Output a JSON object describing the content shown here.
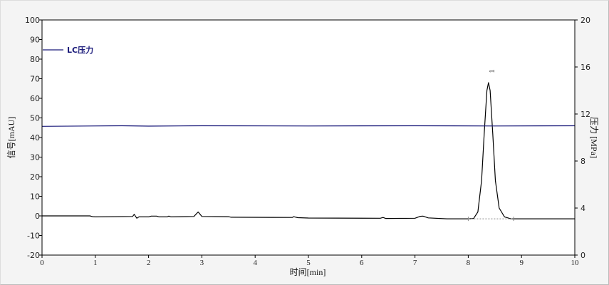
{
  "chart_data": {
    "type": "line",
    "xlabel": "时间[min]",
    "ylabel": "信号[mAU]",
    "y2label": "压力 [MPa]",
    "xlim": [
      0,
      10
    ],
    "ylim": [
      -20,
      100
    ],
    "y2lim": [
      0,
      20
    ],
    "xticks": [
      "0",
      "1",
      "2",
      "3",
      "4",
      "5",
      "6",
      "7",
      "8",
      "9",
      "10"
    ],
    "yticks": [
      "-20",
      "-10",
      "0",
      "10",
      "20",
      "30",
      "40",
      "50",
      "60",
      "70",
      "80",
      "90",
      "100"
    ],
    "y2ticks": [
      "0",
      "4",
      "8",
      "12",
      "16",
      "20"
    ],
    "grid": false,
    "legend": {
      "placement": "top-left",
      "entries": [
        "LC压力"
      ]
    },
    "series": [
      {
        "axis": "left",
        "color": "#000000",
        "points": [
          [
            0,
            0
          ],
          [
            0.9,
            0
          ],
          [
            0.95,
            -0.4
          ],
          [
            1.0,
            -0.5
          ],
          [
            1.7,
            -0.3
          ],
          [
            1.73,
            0.8
          ],
          [
            1.78,
            -1.2
          ],
          [
            1.82,
            -0.5
          ],
          [
            2.0,
            -0.5
          ],
          [
            2.05,
            -0.1
          ],
          [
            2.15,
            -0.1
          ],
          [
            2.2,
            -0.5
          ],
          [
            2.35,
            -0.5
          ],
          [
            2.38,
            -0.1
          ],
          [
            2.42,
            -0.5
          ],
          [
            2.85,
            -0.3
          ],
          [
            2.93,
            2
          ],
          [
            3.0,
            -0.3
          ],
          [
            3.5,
            -0.4
          ],
          [
            3.55,
            -0.7
          ],
          [
            4.7,
            -0.8
          ],
          [
            4.72,
            -0.4
          ],
          [
            4.8,
            -0.9
          ],
          [
            5.0,
            -1.1
          ],
          [
            6.35,
            -1.2
          ],
          [
            6.4,
            -0.8
          ],
          [
            6.45,
            -1.3
          ],
          [
            7.0,
            -1.2
          ],
          [
            7.1,
            -0.2
          ],
          [
            7.15,
            -0.1
          ],
          [
            7.25,
            -1.0
          ],
          [
            7.6,
            -1.5
          ],
          [
            8.0,
            -1.5
          ],
          [
            8.1,
            -1.3
          ],
          [
            8.18,
            2
          ],
          [
            8.25,
            18
          ],
          [
            8.3,
            42
          ],
          [
            8.35,
            64
          ],
          [
            8.38,
            68
          ],
          [
            8.41,
            64
          ],
          [
            8.46,
            42
          ],
          [
            8.51,
            18
          ],
          [
            8.58,
            4
          ],
          [
            8.68,
            -0.5
          ],
          [
            8.8,
            -1.5
          ],
          [
            10,
            -1.5
          ]
        ]
      },
      {
        "name": "LC压力",
        "axis": "right",
        "color": "#1a1a7a",
        "points": [
          [
            0,
            10.95
          ],
          [
            1.5,
            11.0
          ],
          [
            2.0,
            10.97
          ],
          [
            3.0,
            11.0
          ],
          [
            5.0,
            10.98
          ],
          [
            7.0,
            11.0
          ],
          [
            8.5,
            10.98
          ],
          [
            10,
            11.0
          ]
        ]
      }
    ],
    "peaks": [
      {
        "label": "1",
        "time": 8.38,
        "value": 68,
        "baseline": [
          8.0,
          8.85
        ]
      }
    ]
  }
}
